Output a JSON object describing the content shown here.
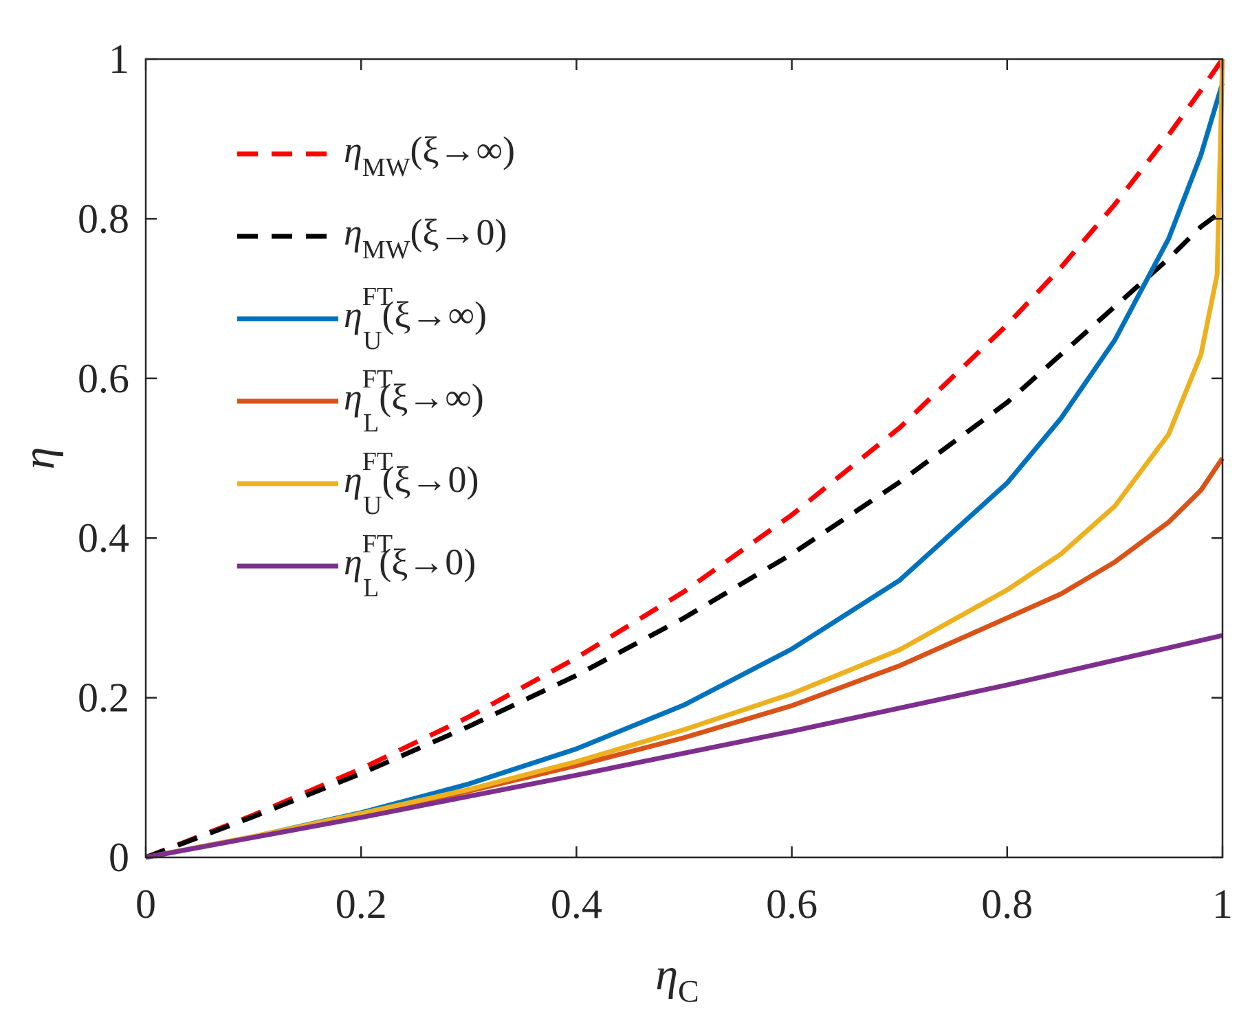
{
  "chart_data": {
    "type": "line",
    "xlabel": {
      "base": "η",
      "sub": "C"
    },
    "ylabel": {
      "base": "η"
    },
    "xlim": [
      0,
      1
    ],
    "ylim": [
      0,
      1
    ],
    "xticks": [
      0,
      0.2,
      0.4,
      0.6,
      0.8,
      1
    ],
    "xtick_labels": [
      "0",
      "0.2",
      "0.4",
      "0.6",
      "0.8",
      "1"
    ],
    "yticks": [
      0,
      0.2,
      0.4,
      0.6,
      0.8,
      1
    ],
    "ytick_labels": [
      "0",
      "0.2",
      "0.4",
      "0.6",
      "0.8",
      "1"
    ],
    "grid": false,
    "legend_position": "top-left",
    "series": [
      {
        "name": "η_MW(ξ→∞)",
        "base": "η",
        "sub": "MW",
        "sup": "",
        "arg": "(ξ→∞)",
        "color": "#ff0000",
        "dash": true,
        "x": [
          0,
          0.1,
          0.2,
          0.3,
          0.4,
          0.5,
          0.6,
          0.7,
          0.8,
          0.85,
          0.9,
          0.95,
          0.98,
          1.0
        ],
        "y": [
          0,
          0.053,
          0.111,
          0.176,
          0.25,
          0.333,
          0.429,
          0.538,
          0.667,
          0.739,
          0.818,
          0.905,
          0.961,
          1.0
        ]
      },
      {
        "name": "η_MW(ξ→0)",
        "base": "η",
        "sub": "MW",
        "sup": "",
        "arg": "(ξ→0)",
        "color": "#000000",
        "dash": true,
        "x": [
          0,
          0.1,
          0.2,
          0.3,
          0.4,
          0.5,
          0.6,
          0.7,
          0.8,
          0.85,
          0.9,
          0.95,
          0.98,
          1.0
        ],
        "y": [
          0,
          0.051,
          0.105,
          0.164,
          0.228,
          0.3,
          0.38,
          0.47,
          0.57,
          0.63,
          0.69,
          0.75,
          0.79,
          0.81
        ]
      },
      {
        "name": "η_U^FT(ξ→∞)",
        "base": "η",
        "sub": "U",
        "sup": "FT",
        "arg": "(ξ→∞)",
        "color": "#0072bd",
        "dash": false,
        "x": [
          0,
          0.1,
          0.2,
          0.3,
          0.4,
          0.5,
          0.6,
          0.7,
          0.8,
          0.85,
          0.9,
          0.95,
          0.98,
          1.0
        ],
        "y": [
          0,
          0.026,
          0.056,
          0.092,
          0.136,
          0.191,
          0.261,
          0.347,
          0.469,
          0.55,
          0.648,
          0.775,
          0.88,
          0.97
        ]
      },
      {
        "name": "η_L^FT(ξ→∞)",
        "base": "η",
        "sub": "L",
        "sup": "FT",
        "arg": "(ξ→∞)",
        "color": "#d95319",
        "dash": false,
        "x": [
          0,
          0.1,
          0.2,
          0.3,
          0.4,
          0.5,
          0.6,
          0.7,
          0.8,
          0.85,
          0.9,
          0.95,
          0.98,
          1.0
        ],
        "y": [
          0,
          0.026,
          0.053,
          0.083,
          0.115,
          0.15,
          0.19,
          0.24,
          0.3,
          0.33,
          0.37,
          0.42,
          0.46,
          0.5
        ]
      },
      {
        "name": "η_U^FT(ξ→0)",
        "base": "η",
        "sub": "U",
        "sup": "FT",
        "arg": "(ξ→0)",
        "color": "#edb120",
        "dash": false,
        "x": [
          0,
          0.1,
          0.2,
          0.3,
          0.4,
          0.5,
          0.6,
          0.7,
          0.8,
          0.85,
          0.9,
          0.95,
          0.98,
          0.995,
          1.0
        ],
        "y": [
          0,
          0.026,
          0.055,
          0.085,
          0.12,
          0.16,
          0.205,
          0.26,
          0.335,
          0.38,
          0.44,
          0.53,
          0.63,
          0.73,
          1.0
        ]
      },
      {
        "name": "η_L^FT(ξ→0)",
        "base": "η",
        "sub": "L",
        "sup": "FT",
        "arg": "(ξ→0)",
        "color": "#7e2f8e",
        "dash": false,
        "x": [
          0,
          0.2,
          0.4,
          0.6,
          0.8,
          1.0
        ],
        "y": [
          0,
          0.05,
          0.103,
          0.158,
          0.216,
          0.278
        ]
      }
    ]
  }
}
